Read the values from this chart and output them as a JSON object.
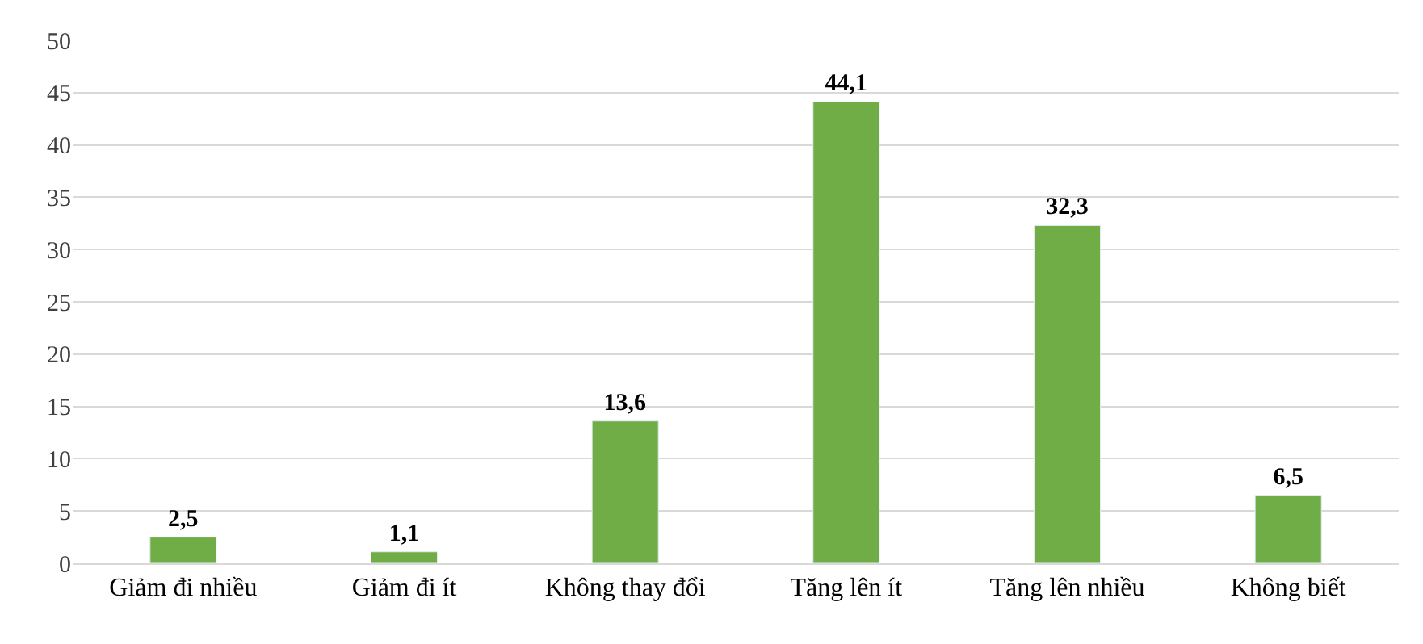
{
  "chart_data": {
    "type": "bar",
    "categories": [
      "Giảm đi nhiều",
      "Giảm đi ít",
      "Không thay đổi",
      "Tăng lên ít",
      "Tăng lên nhiều",
      "Không biết"
    ],
    "values": [
      2.5,
      1.1,
      13.6,
      44.1,
      32.3,
      6.5
    ],
    "value_labels": [
      "2,5",
      "1,1",
      "13,6",
      "44,1",
      "32,3",
      "6,5"
    ],
    "color": "#70ad47",
    "ylim": [
      0,
      50
    ],
    "yticks": [
      0,
      5,
      10,
      15,
      20,
      25,
      30,
      35,
      40,
      45,
      50
    ],
    "grid": "y"
  }
}
